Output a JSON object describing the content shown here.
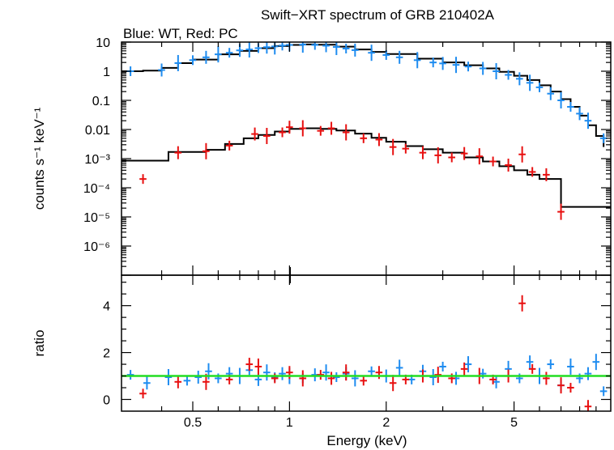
{
  "chart_data": {
    "type": "scatter",
    "title": "Swift−XRT spectrum of GRB 210402A",
    "subtitle": "Blue: WT, Red: PC",
    "xlabel": "Energy (keV)",
    "x_scale": "log",
    "x_range": [
      0.3,
      10
    ],
    "x_ticks": [
      {
        "value": 0.5,
        "label": "0.5"
      },
      {
        "value": 1,
        "label": "1"
      },
      {
        "value": 2,
        "label": "2"
      },
      {
        "value": 5,
        "label": "5"
      }
    ],
    "top_panel": {
      "ylabel": "counts s⁻¹ keV⁻¹",
      "y_scale": "log",
      "y_range": [
        1e-07,
        10
      ],
      "y_ticks": [
        {
          "value": 10,
          "label": "10"
        },
        {
          "value": 1,
          "label": "1"
        },
        {
          "value": 0.1,
          "label": "0.1"
        },
        {
          "value": 0.01,
          "label": "0.01"
        },
        {
          "value": 0.001,
          "label": "10⁻³"
        },
        {
          "value": 0.0001,
          "label": "10⁻⁴"
        },
        {
          "value": 1e-05,
          "label": "10⁻⁵"
        },
        {
          "value": 1e-06,
          "label": "10⁻⁶"
        }
      ],
      "series": [
        {
          "color": "#1e8cf0",
          "points": [
            [
              0.32,
              1.0
            ],
            [
              0.4,
              1.1
            ],
            [
              0.45,
              1.9
            ],
            [
              0.5,
              2.4
            ],
            [
              0.55,
              3.0
            ],
            [
              0.6,
              3.8
            ],
            [
              0.65,
              4.3
            ],
            [
              0.7,
              5.2
            ],
            [
              0.75,
              5.6
            ],
            [
              0.8,
              6.2
            ],
            [
              0.85,
              6.7
            ],
            [
              0.9,
              7.1
            ],
            [
              0.95,
              7.6
            ],
            [
              1.0,
              8.0
            ],
            [
              1.1,
              8.2
            ],
            [
              1.2,
              8.0
            ],
            [
              1.3,
              7.5
            ],
            [
              1.4,
              6.8
            ],
            [
              1.5,
              6.0
            ],
            [
              1.6,
              5.3
            ],
            [
              1.8,
              4.3
            ],
            [
              2.0,
              3.6
            ],
            [
              2.2,
              3.0
            ],
            [
              2.5,
              2.4
            ],
            [
              2.8,
              2.0
            ],
            [
              3.0,
              1.85
            ],
            [
              3.3,
              1.65
            ],
            [
              3.6,
              1.45
            ],
            [
              4.0,
              1.25
            ],
            [
              4.4,
              1.0
            ],
            [
              4.8,
              0.75
            ],
            [
              5.2,
              0.55
            ],
            [
              5.6,
              0.4
            ],
            [
              6.0,
              0.28
            ],
            [
              6.5,
              0.17
            ],
            [
              7.0,
              0.1
            ],
            [
              7.5,
              0.06
            ],
            [
              8.0,
              0.035
            ],
            [
              8.5,
              0.02
            ],
            [
              9.5,
              0.005
            ]
          ]
        },
        {
          "color": "#e81010",
          "points": [
            [
              0.35,
              0.0002
            ],
            [
              0.45,
              0.0016
            ],
            [
              0.55,
              0.0018
            ],
            [
              0.65,
              0.0028
            ],
            [
              0.78,
              0.007
            ],
            [
              0.85,
              0.006
            ],
            [
              0.95,
              0.008
            ],
            [
              1.0,
              0.012
            ],
            [
              1.1,
              0.011
            ],
            [
              1.25,
              0.009
            ],
            [
              1.35,
              0.011
            ],
            [
              1.5,
              0.008
            ],
            [
              1.7,
              0.005
            ],
            [
              1.9,
              0.0045
            ],
            [
              2.1,
              0.0025
            ],
            [
              2.3,
              0.0022
            ],
            [
              2.6,
              0.0016
            ],
            [
              2.9,
              0.0013
            ],
            [
              3.2,
              0.0011
            ],
            [
              3.5,
              0.0015
            ],
            [
              3.9,
              0.0012
            ],
            [
              4.3,
              0.0008
            ],
            [
              4.8,
              0.0006
            ],
            [
              5.3,
              0.0014
            ],
            [
              5.7,
              0.00035
            ],
            [
              6.3,
              0.00028
            ],
            [
              7.0,
              1.5e-05
            ]
          ]
        }
      ],
      "model_wt": [
        [
          0.3,
          1.0
        ],
        [
          0.35,
          1.05
        ],
        [
          0.4,
          1.3
        ],
        [
          0.45,
          1.9
        ],
        [
          0.5,
          2.5
        ],
        [
          0.6,
          3.8
        ],
        [
          0.7,
          5.0
        ],
        [
          0.8,
          6.2
        ],
        [
          0.9,
          7.3
        ],
        [
          1.0,
          8.0
        ],
        [
          1.1,
          8.3
        ],
        [
          1.2,
          8.1
        ],
        [
          1.4,
          7.0
        ],
        [
          1.6,
          5.6
        ],
        [
          1.8,
          4.6
        ],
        [
          2.0,
          3.9
        ],
        [
          2.5,
          2.7
        ],
        [
          3.0,
          2.0
        ],
        [
          3.5,
          1.6
        ],
        [
          4.0,
          1.25
        ],
        [
          4.5,
          0.95
        ],
        [
          5.0,
          0.7
        ],
        [
          5.5,
          0.5
        ],
        [
          6.0,
          0.33
        ],
        [
          6.5,
          0.2
        ],
        [
          7.0,
          0.11
        ],
        [
          7.5,
          0.06
        ],
        [
          8.0,
          0.03
        ],
        [
          8.5,
          0.014
        ],
        [
          9.0,
          0.006
        ],
        [
          9.5,
          0.0025
        ]
      ],
      "model_pc": [
        [
          0.3,
          0.00085
        ],
        [
          0.42,
          0.00085
        ],
        [
          0.42,
          0.0017
        ],
        [
          0.55,
          0.0017
        ],
        [
          0.55,
          0.002
        ],
        [
          0.63,
          0.002
        ],
        [
          0.63,
          0.0032
        ],
        [
          0.72,
          0.005
        ],
        [
          0.8,
          0.0065
        ],
        [
          0.9,
          0.0085
        ],
        [
          1.0,
          0.0105
        ],
        [
          1.1,
          0.011
        ],
        [
          1.25,
          0.0105
        ],
        [
          1.4,
          0.0092
        ],
        [
          1.6,
          0.0072
        ],
        [
          1.8,
          0.0052
        ],
        [
          2.0,
          0.0038
        ],
        [
          2.3,
          0.0027
        ],
        [
          2.6,
          0.0021
        ],
        [
          3.0,
          0.0016
        ],
        [
          3.5,
          0.0011
        ],
        [
          4.0,
          0.0008
        ],
        [
          4.5,
          0.00055
        ],
        [
          5.0,
          0.0004
        ],
        [
          5.5,
          0.00028
        ],
        [
          6.0,
          0.0002
        ],
        [
          7.0,
          0.00012
        ],
        [
          7.0,
          2.2e-05
        ],
        [
          10.0,
          2.2e-05
        ]
      ]
    },
    "bottom_panel": {
      "ylabel": "ratio",
      "y_scale": "linear",
      "y_range": [
        -0.5,
        5.3
      ],
      "y_ticks": [
        {
          "value": 0,
          "label": "0"
        },
        {
          "value": 2,
          "label": "2"
        },
        {
          "value": 4,
          "label": "4"
        }
      ],
      "reference_line": {
        "value": 1,
        "color": "#22dd22"
      },
      "series": [
        {
          "color": "#1e8cf0",
          "points": [
            [
              0.32,
              1.05
            ],
            [
              0.36,
              0.7
            ],
            [
              0.42,
              0.95
            ],
            [
              0.48,
              0.8
            ],
            [
              0.52,
              0.95
            ],
            [
              0.56,
              1.2
            ],
            [
              0.6,
              0.9
            ],
            [
              0.65,
              1.1
            ],
            [
              0.7,
              1.0
            ],
            [
              0.75,
              1.25
            ],
            [
              0.8,
              0.85
            ],
            [
              0.85,
              1.15
            ],
            [
              0.9,
              0.95
            ],
            [
              0.95,
              1.1
            ],
            [
              1.0,
              1.0
            ],
            [
              1.1,
              0.9
            ],
            [
              1.2,
              1.05
            ],
            [
              1.3,
              1.15
            ],
            [
              1.4,
              0.95
            ],
            [
              1.5,
              1.1
            ],
            [
              1.6,
              0.9
            ],
            [
              1.8,
              1.2
            ],
            [
              2.0,
              1.0
            ],
            [
              2.2,
              1.35
            ],
            [
              2.4,
              0.85
            ],
            [
              2.6,
              1.2
            ],
            [
              2.8,
              0.95
            ],
            [
              3.0,
              1.4
            ],
            [
              3.3,
              0.9
            ],
            [
              3.6,
              1.5
            ],
            [
              4.0,
              1.1
            ],
            [
              4.4,
              0.75
            ],
            [
              4.8,
              1.3
            ],
            [
              5.2,
              0.9
            ],
            [
              5.6,
              1.6
            ],
            [
              6.0,
              1.0
            ],
            [
              6.5,
              1.5
            ],
            [
              7.0,
              0.6
            ],
            [
              7.5,
              1.4
            ],
            [
              8.0,
              0.9
            ],
            [
              8.5,
              1.1
            ],
            [
              9.0,
              1.6
            ],
            [
              9.5,
              0.35
            ]
          ]
        },
        {
          "color": "#e81010",
          "points": [
            [
              0.35,
              0.25
            ],
            [
              0.45,
              0.75
            ],
            [
              0.55,
              0.75
            ],
            [
              0.65,
              0.85
            ],
            [
              0.75,
              1.5
            ],
            [
              0.8,
              1.4
            ],
            [
              0.9,
              0.9
            ],
            [
              1.0,
              1.15
            ],
            [
              1.1,
              0.9
            ],
            [
              1.25,
              1.05
            ],
            [
              1.35,
              0.9
            ],
            [
              1.5,
              1.15
            ],
            [
              1.7,
              0.8
            ],
            [
              1.9,
              1.15
            ],
            [
              2.1,
              0.7
            ],
            [
              2.3,
              0.85
            ],
            [
              2.6,
              1.0
            ],
            [
              2.9,
              1.05
            ],
            [
              3.2,
              0.9
            ],
            [
              3.5,
              1.3
            ],
            [
              3.9,
              1.0
            ],
            [
              4.3,
              0.85
            ],
            [
              4.8,
              1.0
            ],
            [
              5.3,
              4.1
            ],
            [
              5.7,
              1.3
            ],
            [
              6.3,
              0.9
            ],
            [
              7.0,
              0.6
            ],
            [
              7.5,
              0.5
            ],
            [
              8.5,
              -0.3
            ]
          ]
        }
      ]
    }
  }
}
